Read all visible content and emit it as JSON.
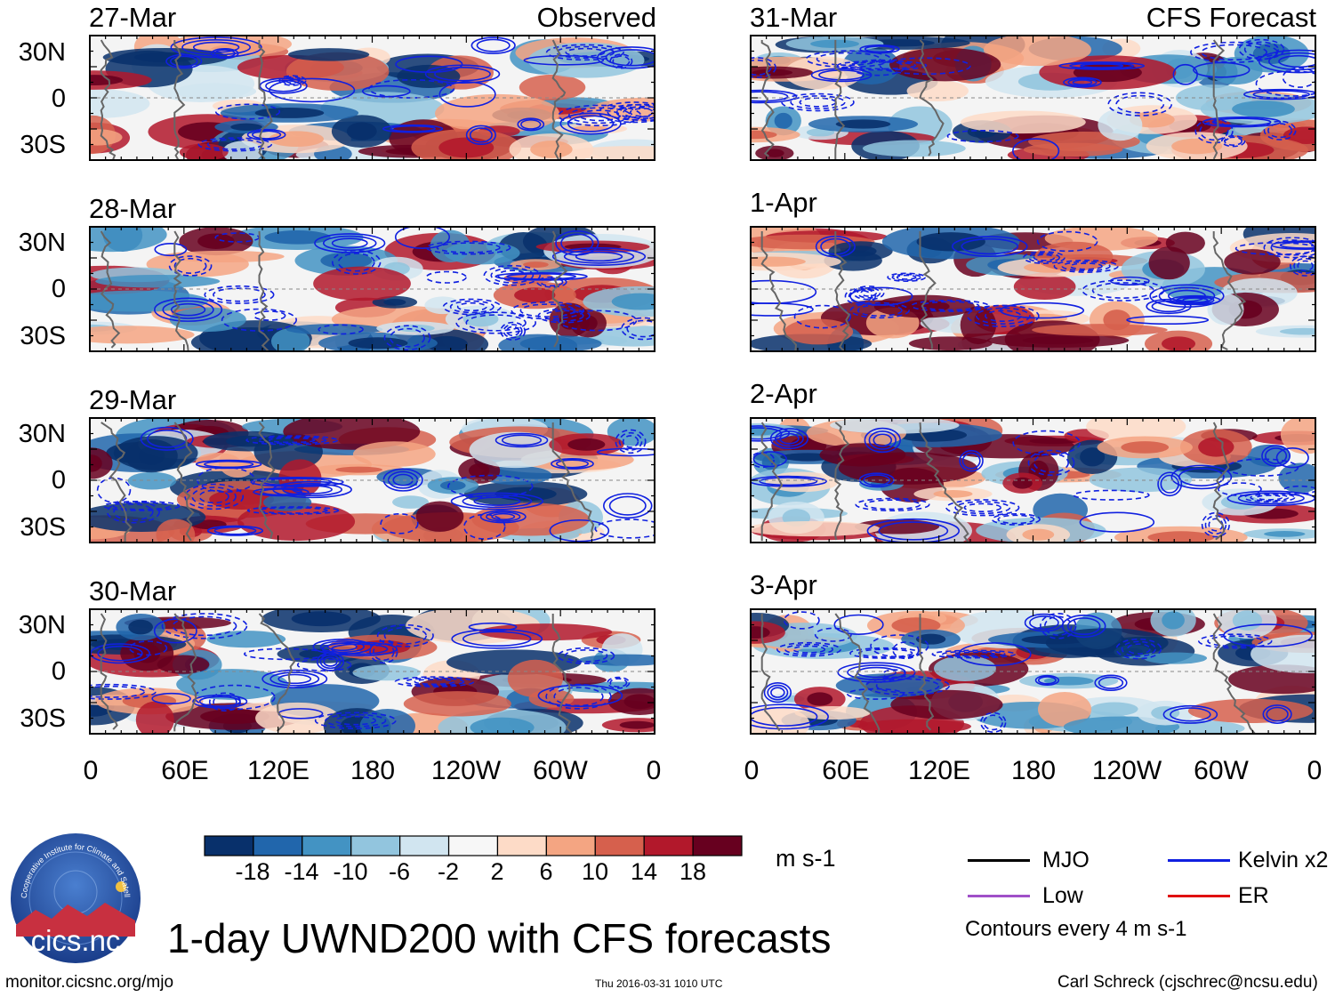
{
  "chart_data": {
    "type": "heatmap",
    "title": "1-day UWND200 with CFS forecasts",
    "variable": "200 hPa zonal wind anomaly (filled) with wave-filtered contours",
    "units": "m s-1",
    "columns": [
      {
        "header": "Observed",
        "panels": [
          "27-Mar",
          "28-Mar",
          "29-Mar",
          "30-Mar"
        ]
      },
      {
        "header": "CFS Forecast",
        "panels": [
          "31-Mar",
          "1-Apr",
          "2-Apr",
          "3-Apr"
        ]
      }
    ],
    "y_ticks": [
      "30N",
      "0",
      "30S"
    ],
    "x_ticks": [
      "0",
      "60E",
      "120E",
      "180",
      "120W",
      "60W",
      "0"
    ],
    "colorbar": {
      "labels": [
        "-18",
        "-14",
        "-10",
        "-6",
        "-2",
        "2",
        "6",
        "10",
        "14",
        "18"
      ],
      "colors": [
        "#08306b",
        "#2166ac",
        "#4393c3",
        "#92c5de",
        "#d1e5f0",
        "#f7f7f7",
        "#fddbc7",
        "#f4a582",
        "#d6604d",
        "#b2182b",
        "#67001f"
      ],
      "units": "m s-1"
    },
    "contour_legend": [
      {
        "label": "MJO",
        "color": "#000000"
      },
      {
        "label": "Kelvin x2",
        "color": "#1020e0"
      },
      {
        "label": "Low",
        "color": "#a050c8"
      },
      {
        "label": "ER",
        "color": "#e01010"
      }
    ],
    "contour_note": "Contours every 4 m s-1"
  },
  "logo": {
    "text": "cics.nc",
    "ring_text": "Cooperative Institute for Climate and Satellites"
  },
  "footer": {
    "url": "monitor.cicsnc.org/mjo",
    "timestamp": "Thu 2016-03-31 1010 UTC",
    "author": "Carl Schreck (cjschrec@ncsu.edu)"
  }
}
